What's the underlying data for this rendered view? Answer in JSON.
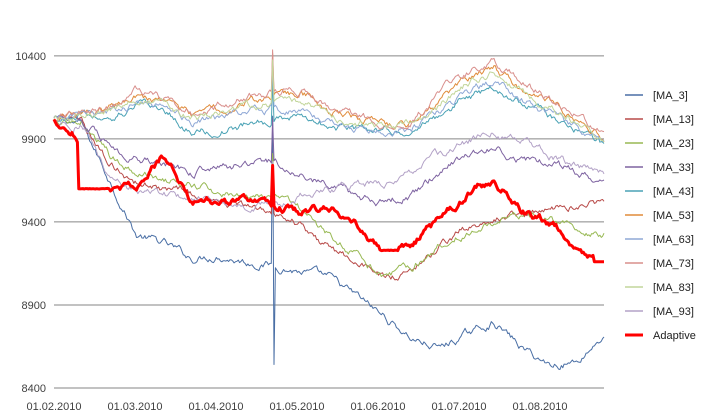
{
  "chart_data": {
    "type": "line",
    "title": "",
    "xlabel": "",
    "ylabel": "",
    "ylim": [
      8400,
      10700
    ],
    "yticks": [
      8400,
      8900,
      9400,
      9900,
      10400
    ],
    "xticks": [
      "01.02.2010",
      "01.03.2010",
      "01.04.2010",
      "01.05.2010",
      "01.06.2010",
      "01.07.2010",
      "01.08.2010"
    ],
    "x_index": [
      0,
      20,
      40,
      60,
      80,
      100,
      120,
      140,
      160,
      180,
      200,
      220,
      240,
      260,
      280,
      300,
      320,
      340,
      360,
      380,
      400
    ],
    "legend_position": "right",
    "series": [
      {
        "name": "[MA_3]",
        "color": "#4a6fa5",
        "width": 1,
        "values": [
          10020,
          9990,
          9660,
          9320,
          9270,
          9180,
          9200,
          9160,
          9140,
          9100,
          9060,
          8950,
          8830,
          8700,
          8640,
          8720,
          8800,
          8640,
          8540,
          8560,
          8720
        ]
      },
      {
        "name": "[MA_13]",
        "color": "#b84a48",
        "width": 1,
        "values": [
          10020,
          10000,
          9760,
          9640,
          9600,
          9560,
          9520,
          9480,
          9460,
          9380,
          9240,
          9160,
          9060,
          9100,
          9240,
          9360,
          9420,
          9440,
          9460,
          9500,
          9520
        ]
      },
      {
        "name": "[MA_23]",
        "color": "#98b954",
        "width": 1,
        "values": [
          10020,
          10020,
          9800,
          9700,
          9660,
          9620,
          9580,
          9560,
          9540,
          9460,
          9320,
          9200,
          9080,
          9120,
          9260,
          9340,
          9400,
          9440,
          9420,
          9360,
          9330
        ]
      },
      {
        "name": "[MA_33]",
        "color": "#7e63a1",
        "width": 1,
        "values": [
          10020,
          10030,
          9860,
          9780,
          9760,
          9700,
          9720,
          9740,
          9760,
          9700,
          9620,
          9560,
          9520,
          9560,
          9700,
          9800,
          9840,
          9780,
          9760,
          9700,
          9640
        ]
      },
      {
        "name": "[MA_43]",
        "color": "#4aa2b5",
        "width": 1,
        "values": [
          10020,
          10040,
          10020,
          10100,
          10060,
          9950,
          9960,
          9980,
          10000,
          10040,
          9980,
          9960,
          9950,
          9960,
          10040,
          10160,
          10200,
          10120,
          10040,
          9960,
          9860
        ]
      },
      {
        "name": "[MA_53]",
        "color": "#e08b3a",
        "width": 1,
        "values": [
          10020,
          10050,
          10080,
          10150,
          10120,
          10040,
          10080,
          10120,
          10160,
          10180,
          10080,
          10020,
          9980,
          10000,
          10120,
          10260,
          10320,
          10200,
          10120,
          10020,
          9900
        ]
      },
      {
        "name": "[MA_63]",
        "color": "#8fa8d6",
        "width": 1,
        "values": [
          10020,
          10040,
          10060,
          10120,
          10100,
          10000,
          10020,
          10060,
          10080,
          10060,
          10000,
          9960,
          9940,
          9960,
          10060,
          10180,
          10240,
          10140,
          10060,
          9960,
          9860
        ]
      },
      {
        "name": "[MA_73]",
        "color": "#d98f8c",
        "width": 1,
        "values": [
          10020,
          10060,
          10090,
          10200,
          10150,
          10060,
          10100,
          10160,
          10180,
          10200,
          10100,
          10040,
          10000,
          10020,
          10160,
          10300,
          10380,
          10240,
          10140,
          10040,
          9920
        ]
      },
      {
        "name": "[MA_83]",
        "color": "#c2d69b",
        "width": 1,
        "values": [
          10020,
          10040,
          10070,
          10140,
          10110,
          10020,
          10050,
          10100,
          10120,
          10140,
          10050,
          10000,
          9970,
          9990,
          10100,
          10240,
          10300,
          10180,
          10090,
          9990,
          9880
        ]
      },
      {
        "name": "[MA_93]",
        "color": "#b3a2c7",
        "width": 1,
        "values": [
          10020,
          9990,
          9700,
          9580,
          9560,
          9520,
          9540,
          9500,
          9500,
          9560,
          9600,
          9620,
          9640,
          9700,
          9800,
          9880,
          9940,
          9880,
          9800,
          9740,
          9680
        ]
      },
      {
        "name": "Adaptive",
        "color": "#ff0000",
        "width": 3,
        "values": [
          10020,
          9900,
          9600,
          9600,
          9800,
          9520,
          9520,
          9540,
          9500,
          9460,
          9500,
          9400,
          9220,
          9260,
          9400,
          9560,
          9660,
          9480,
          9400,
          9260,
          9160
        ]
      }
    ]
  }
}
